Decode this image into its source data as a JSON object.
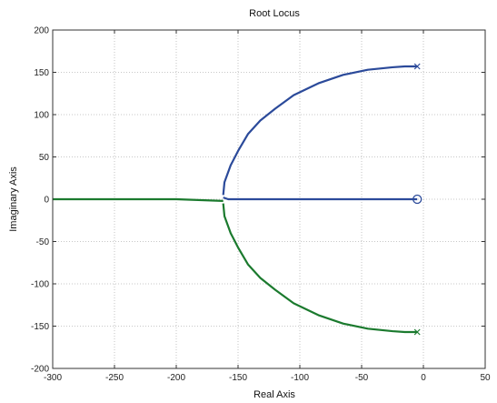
{
  "chart_data": {
    "type": "line",
    "title": "Root Locus",
    "xlabel": "Real Axis",
    "ylabel": "Imaginary Axis",
    "xlim": [
      -300,
      50
    ],
    "ylim": [
      -200,
      200
    ],
    "xticks": [
      -300,
      -250,
      -200,
      -150,
      -100,
      -50,
      0,
      50
    ],
    "yticks": [
      -200,
      -150,
      -100,
      -50,
      0,
      50,
      100,
      150,
      200
    ],
    "grid": true,
    "legend": "none",
    "colors": {
      "blue": "#2b4a9a",
      "green": "#1b7a2e",
      "grid": "#b5b5b5",
      "axis": "#333333"
    },
    "series": [
      {
        "color": "blue",
        "x": [
          -5,
          -15,
          -25,
          -45,
          -65,
          -85,
          -105,
          -120,
          -132,
          -142,
          -150,
          -156,
          -161,
          -162
        ],
        "y": [
          157,
          157,
          156,
          153,
          147,
          137,
          123,
          107,
          93,
          77,
          57,
          40,
          20,
          5
        ]
      },
      {
        "color": "blue",
        "x": [
          -162,
          -158,
          -150,
          -100,
          -50,
          -5
        ],
        "y": [
          2,
          0,
          0,
          0,
          0,
          0
        ]
      },
      {
        "color": "green",
        "x": [
          -5,
          -15,
          -25,
          -45,
          -65,
          -85,
          -105,
          -120,
          -132,
          -142,
          -150,
          -156,
          -161,
          -162
        ],
        "y": [
          -157,
          -157,
          -156,
          -153,
          -147,
          -137,
          -123,
          -107,
          -93,
          -77,
          -57,
          -40,
          -20,
          -5
        ]
      },
      {
        "color": "green",
        "x": [
          -162,
          -200,
          -250,
          -300
        ],
        "y": [
          -2,
          0,
          0,
          0
        ]
      }
    ],
    "poles": [
      {
        "x": -5,
        "y": 157
      },
      {
        "x": -5,
        "y": -157
      }
    ],
    "zeros": [
      {
        "x": -5,
        "y": 0
      }
    ]
  }
}
